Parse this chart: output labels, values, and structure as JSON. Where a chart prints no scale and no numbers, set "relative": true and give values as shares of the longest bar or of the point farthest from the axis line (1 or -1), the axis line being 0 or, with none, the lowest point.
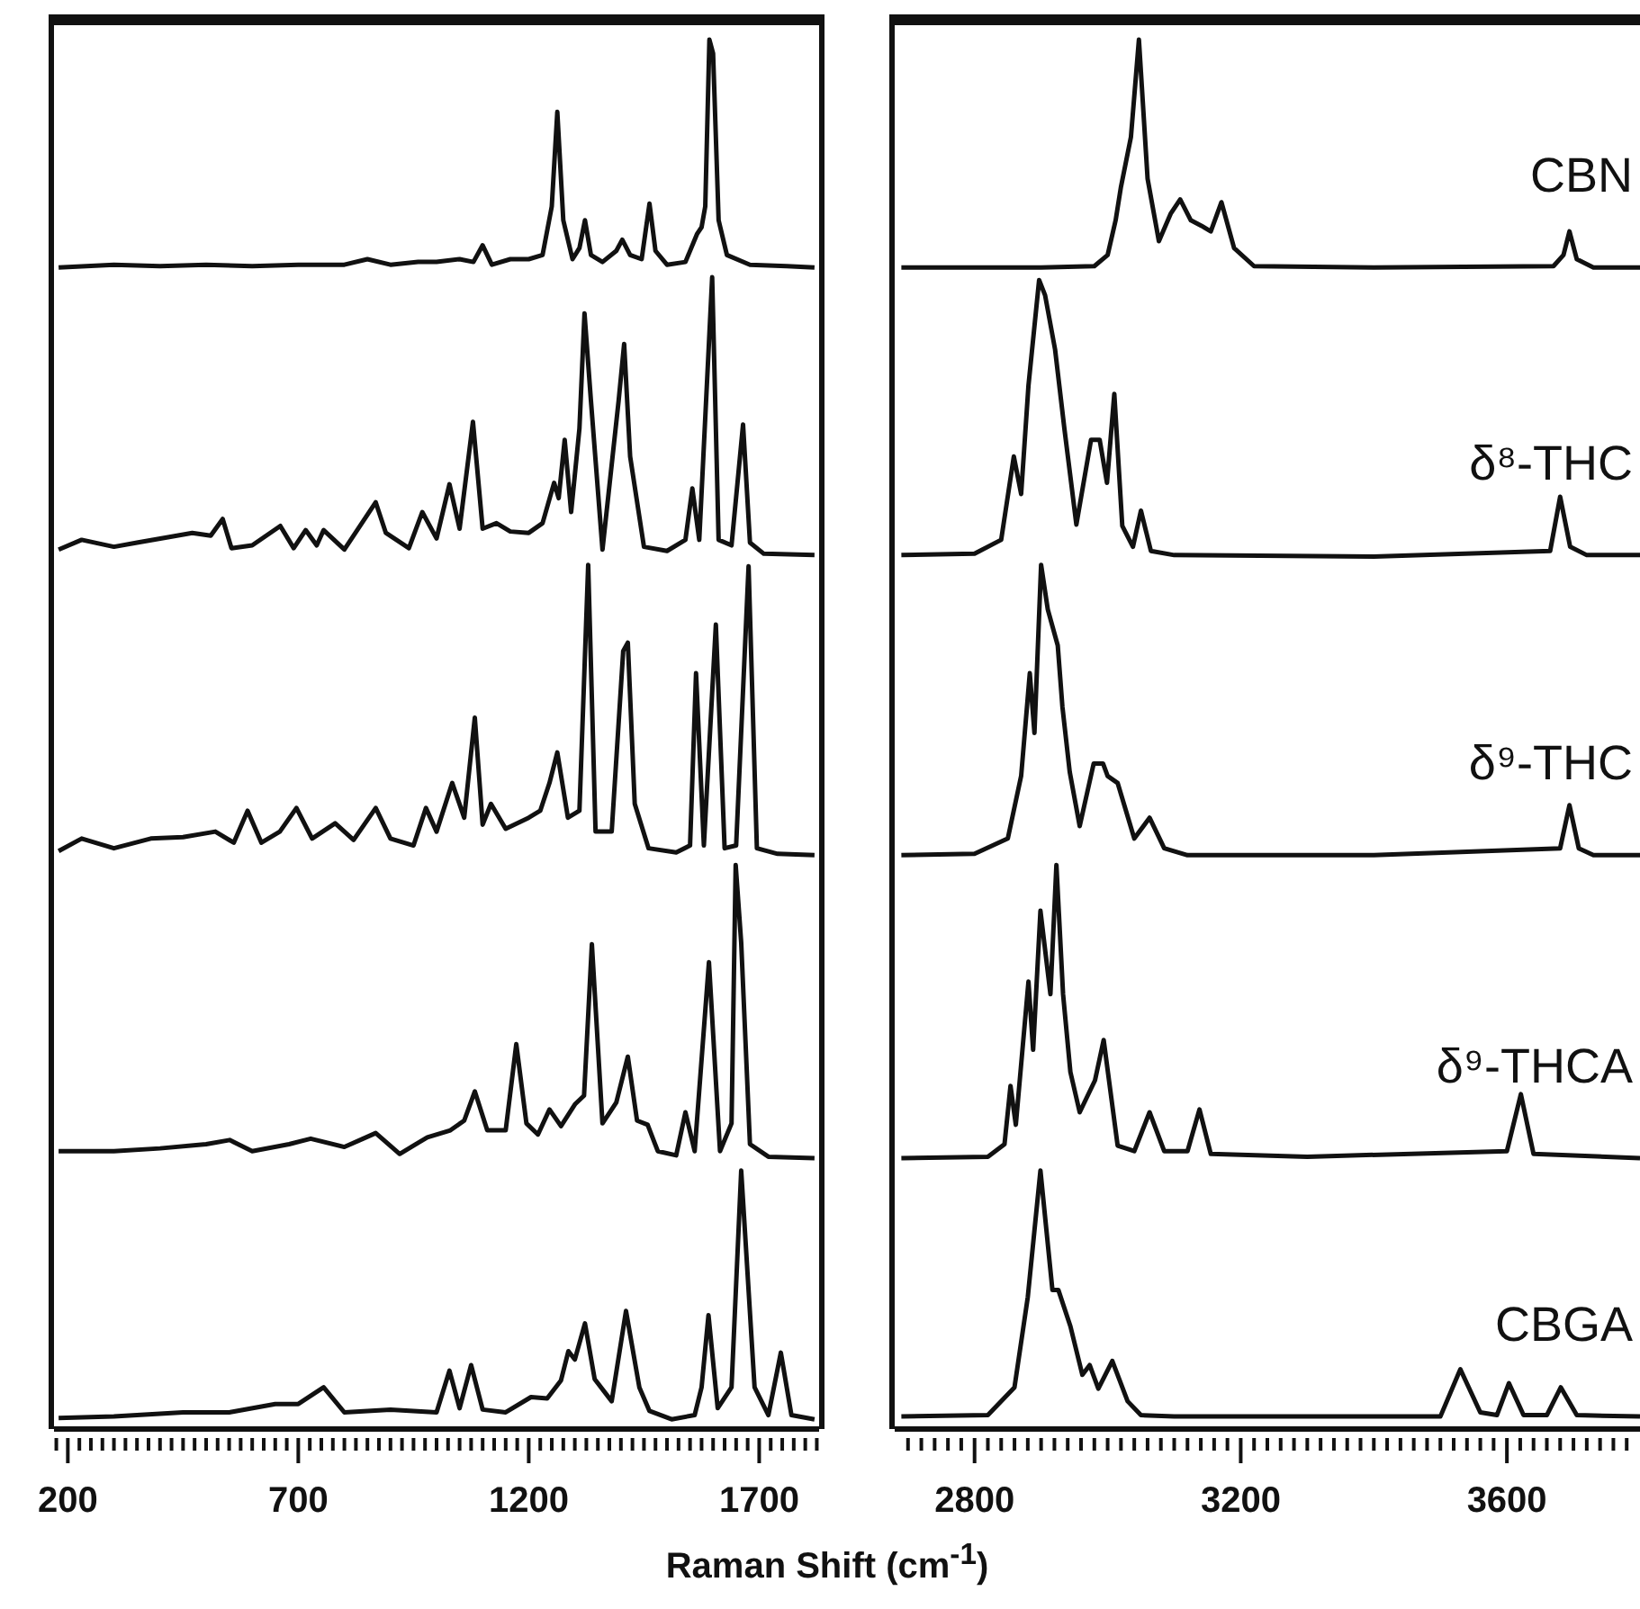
{
  "chart_data": [
    {
      "type": "line",
      "relative": true,
      "xlabel": "Raman Shift (cm$^{-1}$)",
      "tick_labels": "x",
      "xlim": [
        170,
        1830
      ],
      "xticks": [
        {
          "value": 175,
          "label": null
        },
        200,
        {
          "value": 225,
          "label": null
        },
        {
          "value": 250,
          "label": null
        },
        {
          "value": 275,
          "label": null
        },
        {
          "value": 300,
          "label": null
        },
        {
          "value": 325,
          "label": null
        },
        {
          "value": 350,
          "label": null
        },
        {
          "value": 375,
          "label": null
        },
        {
          "value": 400,
          "label": null
        },
        {
          "value": 425,
          "label": null
        },
        {
          "value": 450,
          "label": null
        },
        {
          "value": 475,
          "label": null
        },
        {
          "value": 500,
          "label": null
        },
        {
          "value": 525,
          "label": null
        },
        {
          "value": 550,
          "label": null
        },
        {
          "value": 575,
          "label": null
        },
        {
          "value": 600,
          "label": null
        },
        {
          "value": 625,
          "label": null
        },
        {
          "value": 650,
          "label": null
        },
        {
          "value": 675,
          "label": null
        },
        700,
        {
          "value": 725,
          "label": null
        },
        {
          "value": 750,
          "label": null
        },
        {
          "value": 775,
          "label": null
        },
        {
          "value": 800,
          "label": null
        },
        {
          "value": 825,
          "label": null
        },
        {
          "value": 850,
          "label": null
        },
        {
          "value": 875,
          "label": null
        },
        {
          "value": 900,
          "label": null
        },
        {
          "value": 925,
          "label": null
        },
        {
          "value": 950,
          "label": null
        },
        {
          "value": 975,
          "label": null
        },
        {
          "value": 1000,
          "label": null
        },
        {
          "value": 1025,
          "label": null
        },
        {
          "value": 1050,
          "label": null
        },
        {
          "value": 1075,
          "label": null
        },
        {
          "value": 1100,
          "label": null
        },
        {
          "value": 1125,
          "label": null
        },
        {
          "value": 1150,
          "label": null
        },
        {
          "value": 1175,
          "label": null
        },
        1200,
        {
          "value": 1225,
          "label": null
        },
        {
          "value": 1250,
          "label": null
        },
        {
          "value": 1275,
          "label": null
        },
        {
          "value": 1300,
          "label": null
        },
        {
          "value": 1325,
          "label": null
        },
        {
          "value": 1350,
          "label": null
        },
        {
          "value": 1375,
          "label": null
        },
        {
          "value": 1400,
          "label": null
        },
        {
          "value": 1425,
          "label": null
        },
        {
          "value": 1450,
          "label": null
        },
        {
          "value": 1475,
          "label": null
        },
        {
          "value": 1500,
          "label": null
        },
        {
          "value": 1525,
          "label": null
        },
        {
          "value": 1550,
          "label": null
        },
        {
          "value": 1575,
          "label": null
        },
        {
          "value": 1600,
          "label": null
        },
        {
          "value": 1625,
          "label": null
        },
        {
          "value": 1650,
          "label": null
        },
        {
          "value": 1675,
          "label": null
        },
        1700,
        {
          "value": 1725,
          "label": null
        },
        {
          "value": 1750,
          "label": null
        },
        {
          "value": 1775,
          "label": null
        },
        {
          "value": 1800,
          "label": null
        },
        {
          "value": 1825,
          "label": null
        }
      ],
      "series": [
        {
          "color": "#111111",
          "x": [
            180,
            300,
            400,
            500,
            600,
            700,
            800,
            850,
            900,
            960,
            1000,
            1050,
            1080,
            1100,
            1120,
            1160,
            1200,
            1230,
            1250,
            1262,
            1275,
            1295,
            1310,
            1322,
            1335,
            1360,
            1390,
            1403,
            1420,
            1445,
            1462,
            1475,
            1500,
            1540,
            1565,
            1575,
            1583,
            1592,
            1600,
            1612,
            1630,
            1680,
            1760,
            1820
          ],
          "values": [
            0.836,
            0.838,
            0.837,
            0.838,
            0.837,
            0.838,
            0.838,
            0.842,
            0.838,
            0.84,
            0.84,
            0.842,
            0.84,
            0.852,
            0.838,
            0.842,
            0.842,
            0.845,
            0.88,
            0.948,
            0.87,
            0.842,
            0.85,
            0.87,
            0.845,
            0.84,
            0.848,
            0.856,
            0.845,
            0.842,
            0.882,
            0.848,
            0.838,
            0.84,
            0.86,
            0.865,
            0.88,
            1.0,
            0.99,
            0.87,
            0.845,
            0.838,
            0.837,
            0.836
          ]
        },
        {
          "color": "#111111",
          "x": [
            180,
            230,
            300,
            350,
            420,
            470,
            510,
            536,
            555,
            600,
            661,
            690,
            716,
            740,
            755,
            800,
            868,
            890,
            940,
            969,
            1000,
            1028,
            1050,
            1079,
            1100,
            1130,
            1160,
            1200,
            1230,
            1255,
            1265,
            1278,
            1292,
            1310,
            1321,
            1335,
            1360,
            1395,
            1407,
            1420,
            1450,
            1500,
            1540,
            1555,
            1570,
            1598,
            1612,
            1640,
            1665,
            1680,
            1710,
            1820
          ],
          "values": [
            0.633,
            0.64,
            0.635,
            0.638,
            0.642,
            0.645,
            0.643,
            0.655,
            0.634,
            0.636,
            0.65,
            0.634,
            0.647,
            0.636,
            0.647,
            0.633,
            0.667,
            0.645,
            0.634,
            0.66,
            0.641,
            0.68,
            0.648,
            0.725,
            0.648,
            0.652,
            0.646,
            0.645,
            0.652,
            0.681,
            0.67,
            0.712,
            0.66,
            0.72,
            0.803,
            0.74,
            0.633,
            0.74,
            0.781,
            0.7,
            0.635,
            0.632,
            0.64,
            0.677,
            0.64,
            0.829,
            0.64,
            0.636,
            0.723,
            0.638,
            0.63,
            0.629
          ]
        },
        {
          "color": "#111111",
          "x": [
            180,
            230,
            300,
            380,
            450,
            520,
            560,
            590,
            620,
            660,
            696,
            730,
            780,
            820,
            868,
            900,
            950,
            977,
            1000,
            1034,
            1060,
            1083,
            1100,
            1118,
            1150,
            1200,
            1225,
            1245,
            1262,
            1285,
            1310,
            1329,
            1345,
            1380,
            1405,
            1415,
            1430,
            1460,
            1520,
            1550,
            1563,
            1580,
            1606,
            1625,
            1650,
            1677,
            1695,
            1740,
            1820
          ],
          "values": [
            0.416,
            0.425,
            0.418,
            0.425,
            0.426,
            0.43,
            0.422,
            0.445,
            0.422,
            0.43,
            0.447,
            0.425,
            0.436,
            0.424,
            0.447,
            0.425,
            0.42,
            0.447,
            0.43,
            0.465,
            0.44,
            0.512,
            0.435,
            0.45,
            0.432,
            0.44,
            0.445,
            0.465,
            0.487,
            0.44,
            0.445,
            0.622,
            0.43,
            0.43,
            0.56,
            0.566,
            0.45,
            0.418,
            0.415,
            0.42,
            0.544,
            0.42,
            0.579,
            0.418,
            0.42,
            0.621,
            0.418,
            0.414,
            0.413
          ]
        },
        {
          "color": "#111111",
          "x": [
            180,
            300,
            400,
            500,
            551,
            600,
            680,
            727,
            800,
            868,
            920,
            980,
            1030,
            1060,
            1083,
            1110,
            1150,
            1173,
            1195,
            1220,
            1245,
            1270,
            1301,
            1320,
            1337,
            1360,
            1390,
            1415,
            1435,
            1458,
            1480,
            1520,
            1540,
            1560,
            1591,
            1615,
            1640,
            1649,
            1661,
            1680,
            1720,
            1820
          ],
          "values": [
            0.2,
            0.2,
            0.202,
            0.205,
            0.208,
            0.2,
            0.205,
            0.209,
            0.203,
            0.213,
            0.198,
            0.21,
            0.215,
            0.222,
            0.243,
            0.215,
            0.215,
            0.277,
            0.22,
            0.212,
            0.23,
            0.218,
            0.234,
            0.24,
            0.349,
            0.22,
            0.235,
            0.268,
            0.222,
            0.219,
            0.2,
            0.197,
            0.228,
            0.2,
            0.336,
            0.2,
            0.22,
            0.406,
            0.35,
            0.205,
            0.196,
            0.195
          ]
        },
        {
          "color": "#111111",
          "x": [
            180,
            300,
            450,
            550,
            650,
            700,
            755,
            800,
            900,
            1000,
            1028,
            1050,
            1075,
            1100,
            1150,
            1205,
            1240,
            1270,
            1286,
            1300,
            1322,
            1343,
            1380,
            1411,
            1440,
            1462,
            1510,
            1560,
            1575,
            1590,
            1610,
            1640,
            1661,
            1690,
            1720,
            1747,
            1770,
            1820
          ],
          "values": [
            0.008,
            0.009,
            0.012,
            0.012,
            0.018,
            0.018,
            0.03,
            0.012,
            0.014,
            0.012,
            0.042,
            0.015,
            0.046,
            0.014,
            0.012,
            0.023,
            0.022,
            0.035,
            0.056,
            0.05,
            0.076,
            0.036,
            0.02,
            0.085,
            0.03,
            0.013,
            0.007,
            0.01,
            0.03,
            0.082,
            0.015,
            0.03,
            0.186,
            0.03,
            0.01,
            0.055,
            0.01,
            0.007
          ]
        }
      ]
    },
    {
      "type": "line",
      "relative": true,
      "tick_labels": "x",
      "xlim": [
        2680,
        3800
      ],
      "xticks": [
        {
          "value": 2700,
          "label": null
        },
        {
          "value": 2720,
          "label": null
        },
        {
          "value": 2740,
          "label": null
        },
        {
          "value": 2760,
          "label": null
        },
        {
          "value": 2780,
          "label": null
        },
        2800,
        {
          "value": 2820,
          "label": null
        },
        {
          "value": 2840,
          "label": null
        },
        {
          "value": 2860,
          "label": null
        },
        {
          "value": 2880,
          "label": null
        },
        {
          "value": 2900,
          "label": null
        },
        {
          "value": 2920,
          "label": null
        },
        {
          "value": 2940,
          "label": null
        },
        {
          "value": 2960,
          "label": null
        },
        {
          "value": 2980,
          "label": null
        },
        {
          "value": 3000,
          "label": null
        },
        {
          "value": 3020,
          "label": null
        },
        {
          "value": 3040,
          "label": null
        },
        {
          "value": 3060,
          "label": null
        },
        {
          "value": 3080,
          "label": null
        },
        {
          "value": 3100,
          "label": null
        },
        {
          "value": 3120,
          "label": null
        },
        {
          "value": 3140,
          "label": null
        },
        {
          "value": 3160,
          "label": null
        },
        {
          "value": 3180,
          "label": null
        },
        3200,
        {
          "value": 3220,
          "label": null
        },
        {
          "value": 3240,
          "label": null
        },
        {
          "value": 3260,
          "label": null
        },
        {
          "value": 3280,
          "label": null
        },
        {
          "value": 3300,
          "label": null
        },
        {
          "value": 3320,
          "label": null
        },
        {
          "value": 3340,
          "label": null
        },
        {
          "value": 3360,
          "label": null
        },
        {
          "value": 3380,
          "label": null
        },
        {
          "value": 3400,
          "label": null
        },
        {
          "value": 3420,
          "label": null
        },
        {
          "value": 3440,
          "label": null
        },
        {
          "value": 3460,
          "label": null
        },
        {
          "value": 3480,
          "label": null
        },
        {
          "value": 3500,
          "label": null
        },
        {
          "value": 3520,
          "label": null
        },
        {
          "value": 3540,
          "label": null
        },
        {
          "value": 3560,
          "label": null
        },
        {
          "value": 3580,
          "label": null
        },
        3600,
        {
          "value": 3620,
          "label": null
        },
        {
          "value": 3640,
          "label": null
        },
        {
          "value": 3660,
          "label": null
        },
        {
          "value": 3680,
          "label": null
        },
        {
          "value": 3700,
          "label": null
        },
        {
          "value": 3720,
          "label": null
        },
        {
          "value": 3740,
          "label": null
        },
        {
          "value": 3760,
          "label": null
        },
        {
          "value": 3780,
          "label": null
        }
      ],
      "series": [
        {
          "name": "CBN",
          "color": "#111111",
          "x": [
            2690,
            2900,
            2980,
            3000,
            3012,
            3020,
            3035,
            3047,
            3060,
            3077,
            3095,
            3109,
            3125,
            3141,
            3155,
            3171,
            3190,
            3220,
            3400,
            3670,
            3685,
            3694,
            3705,
            3730,
            3800
          ],
          "values": [
            0.836,
            0.836,
            0.837,
            0.845,
            0.87,
            0.894,
            0.93,
            1.0,
            0.9,
            0.855,
            0.875,
            0.885,
            0.87,
            0.866,
            0.862,
            0.883,
            0.85,
            0.837,
            0.836,
            0.837,
            0.845,
            0.862,
            0.842,
            0.836,
            0.836
          ]
        },
        {
          "name": "δ⁸-THC",
          "color": "#111111",
          "x": [
            2690,
            2800,
            2840,
            2859,
            2870,
            2881,
            2897,
            2906,
            2921,
            2935,
            2953,
            2975,
            2988,
            2999,
            3010,
            3022,
            3038,
            3050,
            3065,
            3100,
            3400,
            3665,
            3680,
            3695,
            3720,
            3800
          ],
          "values": [
            0.629,
            0.63,
            0.64,
            0.7,
            0.673,
            0.751,
            0.827,
            0.816,
            0.777,
            0.72,
            0.651,
            0.712,
            0.712,
            0.681,
            0.745,
            0.65,
            0.635,
            0.661,
            0.632,
            0.629,
            0.628,
            0.632,
            0.671,
            0.635,
            0.629,
            0.629
          ]
        },
        {
          "name": "δ⁹-THC",
          "color": "#111111",
          "x": [
            2690,
            2800,
            2850,
            2870,
            2883,
            2890,
            2900,
            2910,
            2925,
            2932,
            2943,
            2958,
            2979,
            2993,
            3000,
            3015,
            3040,
            3063,
            3085,
            3120,
            3400,
            3680,
            3694,
            3708,
            3730,
            3800
          ],
          "values": [
            0.413,
            0.414,
            0.425,
            0.47,
            0.544,
            0.501,
            0.622,
            0.59,
            0.564,
            0.52,
            0.473,
            0.434,
            0.479,
            0.479,
            0.47,
            0.465,
            0.425,
            0.44,
            0.418,
            0.413,
            0.413,
            0.418,
            0.449,
            0.418,
            0.413,
            0.413
          ]
        },
        {
          "name": "δ⁹-THCA",
          "color": "#111111",
          "x": [
            2690,
            2820,
            2845,
            2854,
            2862,
            2881,
            2888,
            2899,
            2914,
            2923,
            2933,
            2944,
            2958,
            2981,
            2994,
            3015,
            3040,
            3063,
            3085,
            3120,
            3138,
            3155,
            3300,
            3600,
            3621,
            3640,
            3800
          ],
          "values": [
            0.195,
            0.196,
            0.205,
            0.247,
            0.219,
            0.322,
            0.273,
            0.373,
            0.313,
            0.406,
            0.313,
            0.257,
            0.228,
            0.251,
            0.28,
            0.204,
            0.2,
            0.228,
            0.2,
            0.2,
            0.23,
            0.198,
            0.196,
            0.2,
            0.241,
            0.198,
            0.195
          ]
        },
        {
          "name": "CBGA",
          "color": "#111111",
          "x": [
            2690,
            2820,
            2860,
            2880,
            2899,
            2917,
            2926,
            2944,
            2962,
            2973,
            2986,
            3007,
            3030,
            3050,
            3100,
            3500,
            3530,
            3560,
            3585,
            3603,
            3625,
            3660,
            3681,
            3705,
            3800
          ],
          "values": [
            0.009,
            0.01,
            0.03,
            0.095,
            0.186,
            0.1,
            0.1,
            0.074,
            0.039,
            0.046,
            0.029,
            0.049,
            0.02,
            0.01,
            0.009,
            0.009,
            0.043,
            0.012,
            0.01,
            0.033,
            0.01,
            0.01,
            0.03,
            0.01,
            0.009
          ]
        }
      ]
    }
  ]
}
